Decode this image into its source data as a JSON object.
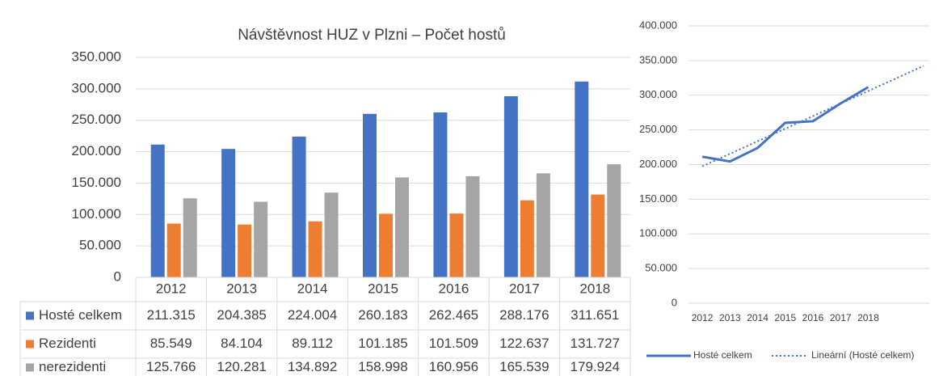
{
  "chart_data": [
    {
      "type": "bar",
      "title": "Návštěvnost HUZ v Plzni – Počet hostů",
      "categories": [
        "2012",
        "2013",
        "2014",
        "2015",
        "2016",
        "2017",
        "2018"
      ],
      "series": [
        {
          "name": "Hosté celkem",
          "color": "#4472c4",
          "values": [
            211315,
            204385,
            224004,
            260183,
            262465,
            288176,
            311651
          ],
          "value_labels": [
            "211.315",
            "204.385",
            "224.004",
            "260.183",
            "262.465",
            "288.176",
            "311.651"
          ]
        },
        {
          "name": "Rezidenti",
          "color": "#ed7d31",
          "values": [
            85549,
            84104,
            89112,
            101185,
            101509,
            122637,
            131727
          ],
          "value_labels": [
            "85.549",
            "84.104",
            "89.112",
            "101.185",
            "101.509",
            "122.637",
            "131.727"
          ]
        },
        {
          "name": "nerezidenti",
          "color": "#a5a5a5",
          "values": [
            125766,
            120281,
            134892,
            158998,
            160956,
            165539,
            179924
          ],
          "value_labels": [
            "125.766",
            "120.281",
            "134.892",
            "158.998",
            "160.956",
            "165.539",
            "179.924"
          ]
        }
      ],
      "ylim": [
        0,
        350000
      ],
      "yticks": [
        0,
        {
          "value": 50000,
          "label": "50.000"
        },
        {
          "value": 100000,
          "label": "100.000"
        },
        {
          "value": 150000,
          "label": "150.000"
        },
        {
          "value": 200000,
          "label": "200.000"
        },
        {
          "value": 250000,
          "label": "250.000"
        },
        {
          "value": 300000,
          "label": "300.000"
        },
        {
          "value": 350000,
          "label": "350.000"
        }
      ],
      "grid": true,
      "data_table": true
    },
    {
      "type": "line",
      "categories": [
        "2012",
        "2013",
        "2014",
        "2015",
        "2016",
        "2017",
        "2018",
        null,
        null
      ],
      "series": [
        {
          "name": "Hosté celkem",
          "color": "#4472c4",
          "values": [
            211315,
            204385,
            224004,
            260183,
            262465,
            288176,
            311651,
            null,
            null
          ]
        },
        {
          "name": "Lineární (Hosté celkem)",
          "color": "#4472c4",
          "dashed": true,
          "values": [
            197413,
            215522,
            233631,
            251740,
            269849,
            287958,
            306067,
            324176,
            342285
          ]
        }
      ],
      "ylim": [
        0,
        400000
      ],
      "yticks": [
        0,
        {
          "value": 50000,
          "label": "50.000"
        },
        {
          "value": 100000,
          "label": "100.000"
        },
        {
          "value": 150000,
          "label": "150.000"
        },
        {
          "value": 200000,
          "label": "200.000"
        },
        {
          "value": 250000,
          "label": "250.000"
        },
        {
          "value": 300000,
          "label": "300.000"
        },
        {
          "value": 350000,
          "label": "350.000"
        },
        {
          "value": 400000,
          "label": "400.000"
        }
      ],
      "grid": true,
      "legend": "bottom"
    }
  ]
}
